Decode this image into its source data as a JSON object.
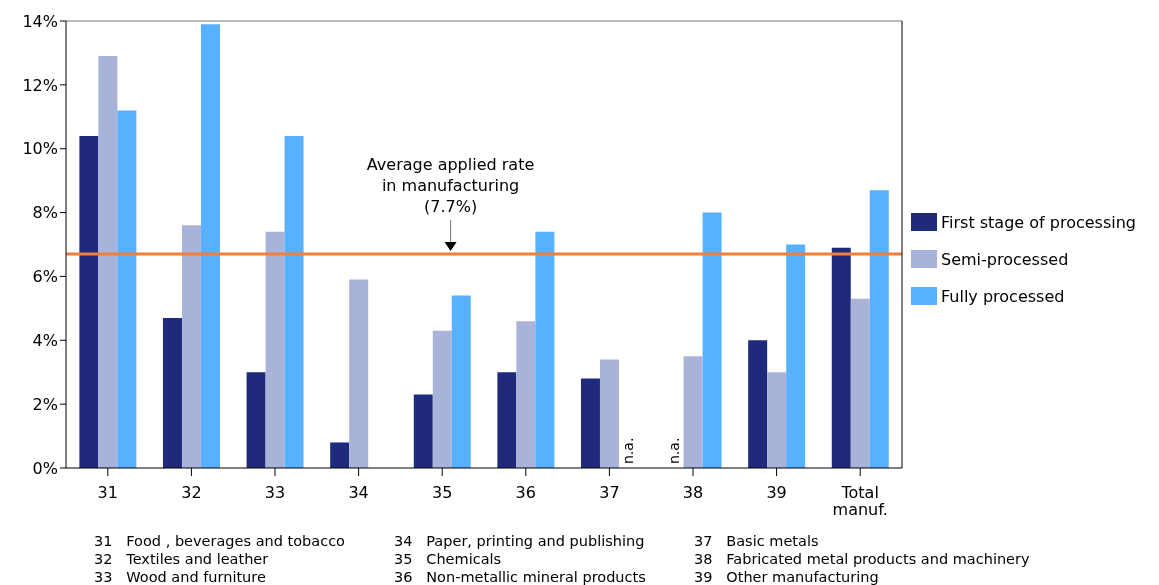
{
  "chart_data": {
    "type": "bar",
    "categories": [
      "31",
      "32",
      "33",
      "34",
      "35",
      "36",
      "37",
      "38",
      "39",
      "Total manuf."
    ],
    "series": [
      {
        "name": "First stage of processing",
        "color": "#1f2a7a",
        "values": [
          10.4,
          4.7,
          3.0,
          0.8,
          2.3,
          3.0,
          2.8,
          null,
          4.0,
          6.9
        ],
        "value_labels": [
          null,
          null,
          null,
          null,
          null,
          null,
          null,
          "n.a.",
          null,
          null
        ]
      },
      {
        "name": "Semi-processed",
        "color": "#a9b2d8",
        "values": [
          12.9,
          7.6,
          7.4,
          5.9,
          4.3,
          4.6,
          3.4,
          3.5,
          3.0,
          5.3
        ]
      },
      {
        "name": "Fully processed",
        "color": "#57b1fe",
        "values": [
          11.2,
          13.9,
          10.4,
          null,
          5.4,
          7.4,
          null,
          8.0,
          7.0,
          8.7
        ],
        "value_labels": [
          null,
          null,
          null,
          null,
          null,
          null,
          "n.a.",
          null,
          null,
          null
        ]
      }
    ],
    "ylim": [
      0,
      14
    ],
    "yticks": [
      {
        "value": 0,
        "label": "0%"
      },
      {
        "value": 2,
        "label": "2%"
      },
      {
        "value": 4,
        "label": "4%"
      },
      {
        "value": 6,
        "label": "6%"
      },
      {
        "value": 8,
        "label": "8%"
      },
      {
        "value": 10,
        "label": "10%"
      },
      {
        "value": 12,
        "label": "12%"
      },
      {
        "value": 14,
        "label": "14%"
      }
    ],
    "ref_lines": [
      {
        "axis": "y",
        "value": 6.7,
        "label": "Average applied rate\nin manufacturing\n(7.7%)",
        "color": "#f07f3c"
      }
    ],
    "legend": "right",
    "annotations": [
      "31   Food , beverages and tobacco",
      "32   Textiles and leather",
      "33   Wood and furniture",
      "34   Paper, printing and publishing",
      "35   Chemicals",
      "36   Non-metallic mineral products",
      "37   Basic metals",
      "38   Fabricated metal products and machinery",
      "39   Other manufacturing"
    ]
  }
}
